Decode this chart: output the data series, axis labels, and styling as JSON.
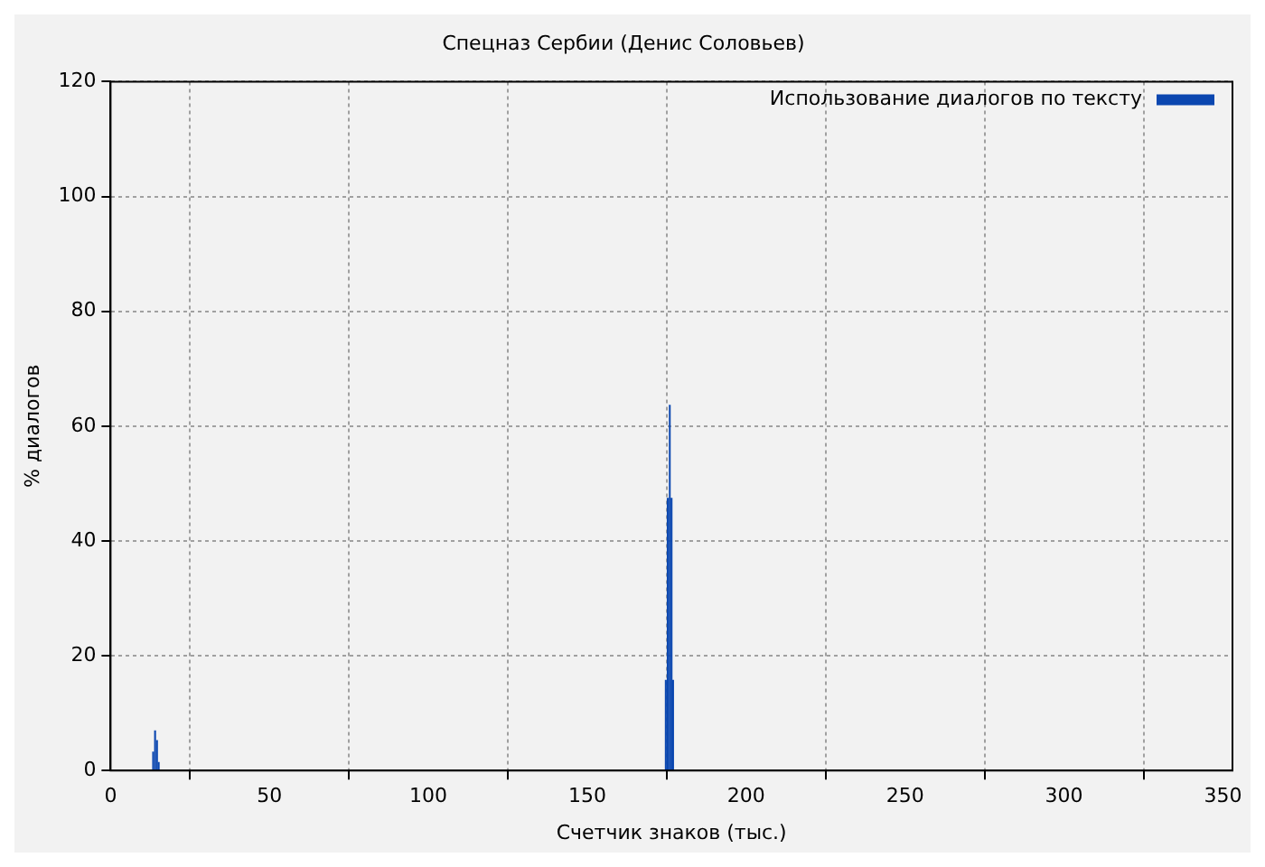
{
  "chart_data": {
    "type": "histogram",
    "title": "Спецназ Сербии (Денис Соловьев)",
    "xlabel": "Счетчик знаков (тыс.)",
    "ylabel": "% диалогов",
    "bins": [
      13.1,
      13.7,
      14.3,
      14.9,
      15.4,
      174.4,
      175.0,
      175.7,
      176.2,
      176.8,
      177.2
    ],
    "series": [
      {
        "name": "Использование диалогов по тексту",
        "color": "#0b47b0",
        "values": [
          3.3,
          7.0,
          5.3,
          1.5,
          0,
          15.8,
          47.5,
          63.7,
          47.5,
          15.8
        ]
      }
    ],
    "xlim": [
      0,
      353
    ],
    "xticks": [
      0,
      50,
      100,
      150,
      200,
      250,
      300,
      350
    ],
    "ylim": [
      0,
      120
    ],
    "yticks": [
      0,
      20,
      40,
      60,
      80,
      100,
      120
    ],
    "grid": true,
    "legend": "top right"
  }
}
